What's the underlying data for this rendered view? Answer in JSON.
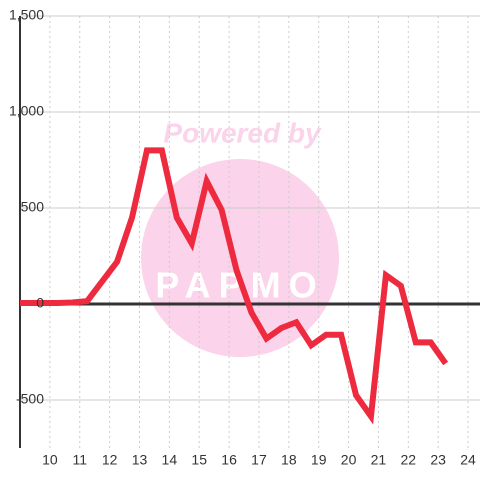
{
  "chart_data": {
    "type": "line",
    "x": [
      9,
      10.25,
      10.75,
      11.25,
      12.25,
      12.75,
      13.25,
      13.75,
      14.25,
      14.75,
      15.25,
      15.75,
      16.25,
      16.75,
      17.25,
      17.75,
      18.25,
      18.75,
      19.25,
      19.75,
      20.25,
      20.75,
      21.25,
      21.75,
      22.25,
      22.75,
      23.25
    ],
    "series": [
      {
        "color": "#ee2a3f",
        "values": [
          5,
          5,
          8,
          15,
          220,
          450,
          800,
          800,
          450,
          315,
          640,
          490,
          175,
          -45,
          -180,
          -125,
          -95,
          -215,
          -160,
          -160,
          -475,
          -585,
          150,
          95,
          -200,
          -200,
          -310
        ]
      }
    ],
    "xlim": [
      9,
      24.4
    ],
    "xticks": [
      10,
      11,
      12,
      13,
      14,
      15,
      16,
      17,
      18,
      19,
      20,
      21,
      22,
      23,
      24
    ],
    "ylim": [
      -750,
      1500
    ],
    "yticks": [
      -500,
      0,
      {
        "value": 500,
        "label": "500"
      },
      {
        "value": 1000,
        "label": "1,000"
      },
      {
        "value": 1500,
        "label": "1,500"
      }
    ],
    "grid": true,
    "watermark": [
      "Powered by",
      "PAPMO"
    ]
  }
}
